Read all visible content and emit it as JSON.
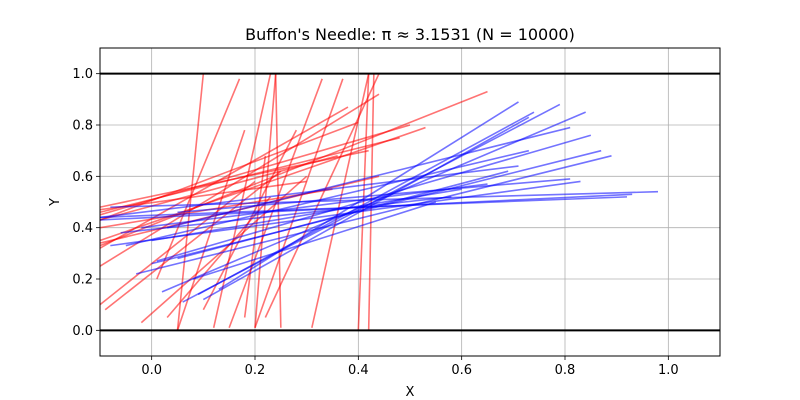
{
  "chart_data": {
    "type": "line",
    "title": "Buffon's Needle: π ≈ 3.1531 (N = 10000)",
    "xlabel": "X",
    "ylabel": "Y",
    "xlim": [
      -0.1,
      1.1
    ],
    "ylim": [
      -0.1,
      1.1
    ],
    "xticks": [
      "0.0",
      "0.2",
      "0.4",
      "0.6",
      "0.8",
      "1.0"
    ],
    "yticks": [
      "0.0",
      "0.2",
      "0.4",
      "0.6",
      "0.8",
      "1.0"
    ],
    "grid": true,
    "legend": "none",
    "colors": {
      "crossing": "#ff0000",
      "non_crossing": "#0000ff",
      "boundary": "#000000",
      "grid": "#b0b0b0"
    },
    "boundary_lines_y": [
      0.0,
      1.0
    ],
    "series": [
      {
        "category": "crossing",
        "segments": [
          [
            [
              0.1,
              1.0
            ],
            [
              0.05,
              0.0
            ]
          ],
          [
            [
              0.17,
              0.98
            ],
            [
              0.01,
              0.2
            ]
          ],
          [
            [
              0.23,
              1.0
            ],
            [
              0.12,
              0.01
            ]
          ],
          [
            [
              0.24,
              1.0
            ],
            [
              0.25,
              0.01
            ]
          ],
          [
            [
              0.24,
              1.0
            ],
            [
              0.2,
              0.01
            ]
          ],
          [
            [
              0.33,
              0.98
            ],
            [
              0.15,
              0.01
            ]
          ],
          [
            [
              0.37,
              0.98
            ],
            [
              0.2,
              0.01
            ]
          ],
          [
            [
              0.42,
              1.0
            ],
            [
              0.31,
              0.01
            ]
          ],
          [
            [
              0.42,
              1.0
            ],
            [
              0.4,
              0.0
            ]
          ],
          [
            [
              0.43,
              1.0
            ],
            [
              0.42,
              0.0
            ]
          ],
          [
            [
              0.44,
              1.0
            ],
            [
              0.22,
              0.05
            ]
          ],
          [
            [
              0.18,
              0.78
            ],
            [
              0.05,
              0.0
            ]
          ],
          [
            [
              0.28,
              0.78
            ],
            [
              0.1,
              0.08
            ]
          ],
          [
            [
              0.23,
              0.52
            ],
            [
              0.03,
              0.05
            ]
          ],
          [
            [
              0.3,
              0.6
            ],
            [
              -0.02,
              0.03
            ]
          ],
          [
            [
              0.22,
              0.68
            ],
            [
              0.18,
              0.05
            ]
          ],
          [
            [
              0.65,
              0.93
            ],
            [
              -0.1,
              0.33
            ]
          ],
          [
            [
              0.53,
              0.79
            ],
            [
              -0.1,
              0.35
            ]
          ],
          [
            [
              0.44,
              0.92
            ],
            [
              -0.1,
              0.25
            ]
          ],
          [
            [
              0.38,
              0.87
            ],
            [
              -0.1,
              0.32
            ]
          ],
          [
            [
              0.4,
              0.81
            ],
            [
              -0.1,
              0.43
            ]
          ],
          [
            [
              0.5,
              0.8
            ],
            [
              -0.1,
              0.45
            ]
          ],
          [
            [
              0.48,
              0.75
            ],
            [
              -0.1,
              0.46
            ]
          ],
          [
            [
              0.42,
              0.7
            ],
            [
              -0.1,
              0.48
            ]
          ],
          [
            [
              0.36,
              0.68
            ],
            [
              -0.1,
              0.43
            ]
          ],
          [
            [
              0.3,
              0.58
            ],
            [
              -0.1,
              0.47
            ]
          ],
          [
            [
              0.35,
              0.55
            ],
            [
              -0.1,
              0.4
            ]
          ],
          [
            [
              0.25,
              0.62
            ],
            [
              -0.09,
              0.08
            ]
          ],
          [
            [
              0.2,
              0.58
            ],
            [
              -0.1,
              0.1
            ]
          ],
          [
            [
              0.44,
              0.6
            ],
            [
              -0.1,
              0.34
            ]
          ]
        ]
      },
      {
        "category": "non_crossing",
        "segments": [
          [
            [
              0.98,
              0.54
            ],
            [
              -0.08,
              0.48
            ]
          ],
          [
            [
              0.93,
              0.53
            ],
            [
              -0.1,
              0.43
            ]
          ],
          [
            [
              0.92,
              0.52
            ],
            [
              -0.1,
              0.44
            ]
          ],
          [
            [
              0.89,
              0.68
            ],
            [
              -0.03,
              0.22
            ]
          ],
          [
            [
              0.87,
              0.7
            ],
            [
              0.0,
              0.26
            ]
          ],
          [
            [
              0.85,
              0.76
            ],
            [
              0.01,
              0.27
            ]
          ],
          [
            [
              0.84,
              0.85
            ],
            [
              0.02,
              0.15
            ]
          ],
          [
            [
              0.83,
              0.58
            ],
            [
              -0.08,
              0.33
            ]
          ],
          [
            [
              0.81,
              0.79
            ],
            [
              0.03,
              0.4
            ]
          ],
          [
            [
              0.81,
              0.59
            ],
            [
              0.05,
              0.46
            ]
          ],
          [
            [
              0.79,
              0.88
            ],
            [
              0.06,
              0.11
            ]
          ],
          [
            [
              0.74,
              0.85
            ],
            [
              0.09,
              0.14
            ]
          ],
          [
            [
              0.73,
              0.83
            ],
            [
              0.1,
              0.12
            ]
          ],
          [
            [
              0.73,
              0.7
            ],
            [
              -0.05,
              0.33
            ]
          ],
          [
            [
              0.71,
              0.89
            ],
            [
              0.13,
              0.16
            ]
          ],
          [
            [
              0.71,
              0.64
            ],
            [
              -0.1,
              0.44
            ]
          ],
          [
            [
              0.69,
              0.62
            ],
            [
              0.05,
              0.28
            ]
          ],
          [
            [
              0.65,
              0.57
            ],
            [
              -0.02,
              0.4
            ]
          ],
          [
            [
              0.6,
              0.55
            ],
            [
              0.0,
              0.35
            ]
          ],
          [
            [
              0.58,
              0.52
            ],
            [
              -0.06,
              0.38
            ]
          ],
          [
            [
              0.55,
              0.5
            ],
            [
              0.08,
              0.2
            ]
          ]
        ]
      }
    ]
  }
}
